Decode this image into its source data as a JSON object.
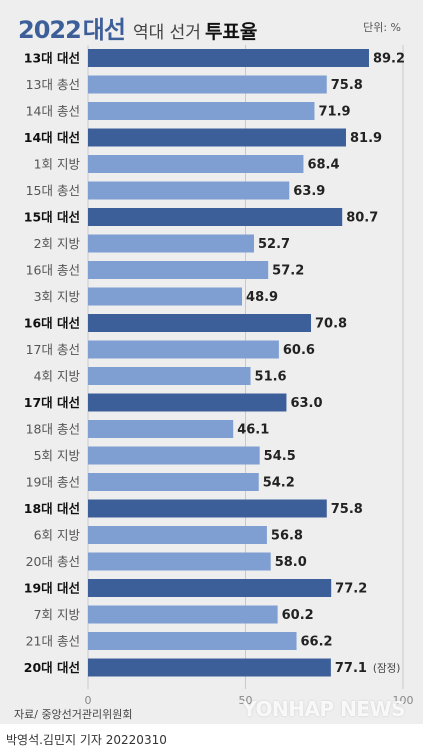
{
  "header": {
    "title_year": "2022",
    "title_word": "대선",
    "title_mid": "역대 선거",
    "title_end": "투표율",
    "unit": "단위: %"
  },
  "footer": {
    "source": "자료/ 중앙선거관리위원회",
    "watermark": "YONHAP NEWS",
    "credit": "박영석.김민지 기자  20220310"
  },
  "colors": {
    "background": "#eeeeee",
    "presidential_bar": "#3d5f99",
    "other_bar": "#7f9fd3"
  },
  "chart_data": {
    "type": "bar",
    "orientation": "horizontal",
    "xlim": [
      0,
      100
    ],
    "x_ticks": [
      0,
      50,
      100
    ],
    "grid": true,
    "title": "2022 대선 역대 선거 투표율",
    "categories": [
      "13대 대선",
      "13대 총선",
      "14대 총선",
      "14대 대선",
      "1회 지방",
      "15대 총선",
      "15대 대선",
      "2회 지방",
      "16대 총선",
      "3회 지방",
      "16대 대선",
      "17대 총선",
      "4회 지방",
      "17대 대선",
      "18대 총선",
      "5회 지방",
      "19대 총선",
      "18대 대선",
      "6회 지방",
      "20대 총선",
      "19대 대선",
      "7회 지방",
      "21대 총선",
      "20대 대선"
    ],
    "values": [
      89.2,
      75.8,
      71.9,
      81.9,
      68.4,
      63.9,
      80.7,
      52.7,
      57.2,
      48.9,
      70.8,
      60.6,
      51.6,
      63.0,
      46.1,
      54.5,
      54.2,
      75.8,
      56.8,
      58.0,
      77.2,
      60.2,
      66.2,
      77.1
    ],
    "value_labels": [
      "89.2",
      "75.8",
      "71.9",
      "81.9",
      "68.4",
      "63.9",
      "80.7",
      "52.7",
      "57.2",
      "48.9",
      "70.8",
      "60.6",
      "51.6",
      "63.0",
      "46.1",
      "54.5",
      "54.2",
      "75.8",
      "56.8",
      "58.0",
      "77.2",
      "60.2",
      "66.2",
      "77.1"
    ],
    "highlight": [
      true,
      false,
      false,
      true,
      false,
      false,
      true,
      false,
      false,
      false,
      true,
      false,
      false,
      true,
      false,
      false,
      false,
      true,
      false,
      false,
      true,
      false,
      false,
      true
    ],
    "annotations": [
      {
        "category": "20대 대선",
        "text": "(잠정)"
      }
    ]
  }
}
